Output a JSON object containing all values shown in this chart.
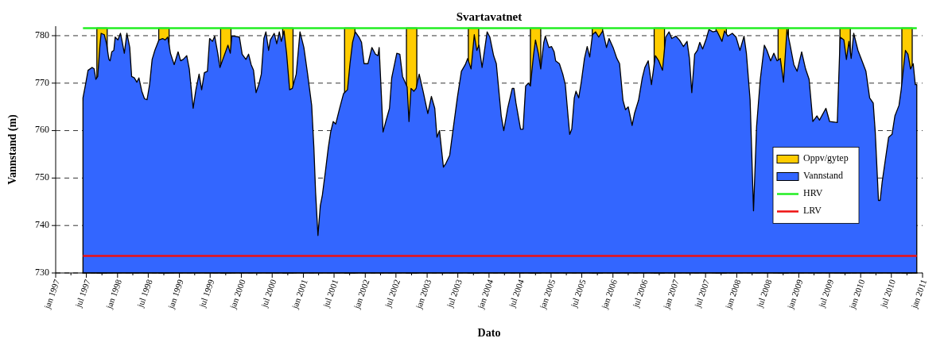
{
  "chart_data": {
    "type": "area",
    "title": "Svartavatnet",
    "xlabel": "Dato",
    "ylabel": "Vannstand (m)",
    "xlim": [
      "1997-01-01",
      "2011-01-01"
    ],
    "xticks": [
      {
        "value": "1997-01-01",
        "label": "jan 1997"
      },
      {
        "value": "1997-04-01",
        "label": null
      },
      {
        "value": "1997-07-01",
        "label": "jul 1997"
      },
      {
        "value": "1997-10-01",
        "label": null
      },
      {
        "value": "1998-01-01",
        "label": "jan 1998"
      },
      {
        "value": "1998-04-01",
        "label": null
      },
      {
        "value": "1998-07-01",
        "label": "jul 1998"
      },
      {
        "value": "1998-10-01",
        "label": null
      },
      {
        "value": "1999-01-01",
        "label": "jan 1999"
      },
      {
        "value": "1999-04-01",
        "label": null
      },
      {
        "value": "1999-07-01",
        "label": "jul 1999"
      },
      {
        "value": "1999-10-01",
        "label": null
      },
      {
        "value": "2000-01-01",
        "label": "jan 2000"
      },
      {
        "value": "2000-04-01",
        "label": null
      },
      {
        "value": "2000-07-01",
        "label": "jul 2000"
      },
      {
        "value": "2000-10-01",
        "label": null
      },
      {
        "value": "2001-01-01",
        "label": "jan 2001"
      },
      {
        "value": "2001-04-01",
        "label": null
      },
      {
        "value": "2001-07-01",
        "label": "jul 2001"
      },
      {
        "value": "2001-10-01",
        "label": null
      },
      {
        "value": "2002-01-01",
        "label": "jan 2002"
      },
      {
        "value": "2002-04-01",
        "label": null
      },
      {
        "value": "2002-07-01",
        "label": "jul 2002"
      },
      {
        "value": "2002-10-01",
        "label": null
      },
      {
        "value": "2003-01-01",
        "label": "jan 2003"
      },
      {
        "value": "2003-04-01",
        "label": null
      },
      {
        "value": "2003-07-01",
        "label": "jul 2003"
      },
      {
        "value": "2003-10-01",
        "label": null
      },
      {
        "value": "2004-01-01",
        "label": "jan 2004"
      },
      {
        "value": "2004-04-01",
        "label": null
      },
      {
        "value": "2004-07-01",
        "label": "jul 2004"
      },
      {
        "value": "2004-10-01",
        "label": null
      },
      {
        "value": "2005-01-01",
        "label": "jan 2005"
      },
      {
        "value": "2005-04-01",
        "label": null
      },
      {
        "value": "2005-07-01",
        "label": "jul 2005"
      },
      {
        "value": "2005-10-01",
        "label": null
      },
      {
        "value": "2006-01-01",
        "label": "jan 2006"
      },
      {
        "value": "2006-04-01",
        "label": null
      },
      {
        "value": "2006-07-01",
        "label": "jul 2006"
      },
      {
        "value": "2006-10-01",
        "label": null
      },
      {
        "value": "2007-01-01",
        "label": "jan 2007"
      },
      {
        "value": "2007-04-01",
        "label": null
      },
      {
        "value": "2007-07-01",
        "label": "jul 2007"
      },
      {
        "value": "2007-10-01",
        "label": null
      },
      {
        "value": "2008-01-01",
        "label": "jan 2008"
      },
      {
        "value": "2008-04-01",
        "label": null
      },
      {
        "value": "2008-07-01",
        "label": "jul 2008"
      },
      {
        "value": "2008-10-01",
        "label": null
      },
      {
        "value": "2009-01-01",
        "label": "jan 2009"
      },
      {
        "value": "2009-04-01",
        "label": null
      },
      {
        "value": "2009-07-01",
        "label": "jul 2009"
      },
      {
        "value": "2009-10-01",
        "label": null
      },
      {
        "value": "2010-01-01",
        "label": "jan 2010"
      },
      {
        "value": "2010-04-01",
        "label": null
      },
      {
        "value": "2010-07-01",
        "label": "jul 2010"
      },
      {
        "value": "2010-10-01",
        "label": null
      },
      {
        "value": "2011-01-01",
        "label": "jan 2011"
      }
    ],
    "ylim": [
      730,
      782
    ],
    "yticks": [
      730,
      740,
      750,
      760,
      770,
      780
    ],
    "grid": "y",
    "legend": "right",
    "series": [
      {
        "name": "Oppv/gytep",
        "color": "#ffcc00",
        "x": [
          "1997-09-01",
          "1997-11-01",
          "1997-12-01",
          "1998-09-01",
          "1998-11-01",
          "1998-12-01",
          "1999-09-01",
          "1999-11-01",
          "1999-12-01",
          "2000-09-01",
          "2000-11-01",
          "2000-12-01",
          "2001-09-01",
          "2001-11-01",
          "2001-12-01",
          "2002-09-01",
          "2002-11-01",
          "2002-12-01",
          "2003-09-01",
          "2003-11-01",
          "2003-12-01",
          "2004-09-01",
          "2004-11-01",
          "2004-12-01",
          "2005-09-01",
          "2005-11-01",
          "2005-12-01",
          "2006-09-01",
          "2006-11-01",
          "2006-12-01",
          "2007-09-01",
          "2007-11-01",
          "2007-12-01",
          "2008-09-01",
          "2008-11-01",
          "2008-12-01",
          "2009-09-01",
          "2009-11-01",
          "2009-12-01",
          "2010-09-01",
          "2010-11-01"
        ],
        "values": [
          781.6,
          781.6,
          null,
          781.6,
          781.6,
          null,
          781.6,
          781.6,
          null,
          781.6,
          781.6,
          null,
          781.6,
          781.6,
          null,
          781.6,
          781.6,
          null,
          781.6,
          781.6,
          null,
          781.6,
          781.6,
          null,
          781.6,
          781.6,
          null,
          781.6,
          781.6,
          null,
          781.6,
          781.6,
          null,
          781.6,
          781.6,
          null,
          781.6,
          781.6,
          null,
          781.6,
          781.6
        ]
      },
      {
        "name": "Vannstand",
        "color": "#3366ff",
        "x": [
          "1997-06-11",
          "1997-06-26",
          "1997-07-11",
          "1997-08-04",
          "1997-08-16",
          "1997-08-26",
          "1997-09-06",
          "1997-09-18",
          "1997-09-26",
          "1997-10-15",
          "1997-10-28",
          "1997-11-11",
          "1997-11-18",
          "1997-11-28",
          "1997-12-10",
          "1997-12-18",
          "1998-01-03",
          "1998-01-18",
          "1998-01-28",
          "1998-02-10",
          "1998-02-25",
          "1998-03-14",
          "1998-03-25",
          "1998-04-10",
          "1998-04-25",
          "1998-05-07",
          "1998-05-24",
          "1998-06-09",
          "1998-06-24",
          "1998-07-09",
          "1998-07-24",
          "1998-08-09",
          "1998-09-02",
          "1998-09-24",
          "1998-10-09",
          "1998-10-24",
          "1998-11-09",
          "1998-12-01",
          "1998-12-24",
          "1999-01-08",
          "1999-01-23",
          "1999-02-13",
          "1999-02-28",
          "1999-03-23",
          "1999-04-08",
          "1999-04-27",
          "1999-05-12",
          "1999-05-28",
          "1999-06-15",
          "1999-06-28",
          "1999-07-15",
          "1999-07-28",
          "1999-08-15",
          "1999-08-28",
          "1999-09-14",
          "1999-10-14",
          "1999-10-28",
          "1999-11-06",
          "1999-11-21",
          "1999-12-21",
          "2000-01-06",
          "2000-01-28",
          "2000-02-13",
          "2000-02-28",
          "2000-03-13",
          "2000-03-28",
          "2000-04-13",
          "2000-04-28",
          "2000-05-13",
          "2000-05-25",
          "2000-06-10",
          "2000-06-20",
          "2000-07-13",
          "2000-07-28",
          "2000-08-12",
          "2000-08-24",
          "2000-09-09",
          "2000-09-24",
          "2000-10-12",
          "2000-10-28",
          "2000-11-20",
          "2000-12-12",
          "2001-01-04",
          "2001-01-26",
          "2001-02-19",
          "2001-03-04",
          "2001-03-14",
          "2001-03-28",
          "2001-04-11",
          "2001-04-23",
          "2001-05-11",
          "2001-05-28",
          "2001-06-11",
          "2001-06-26",
          "2001-07-11",
          "2001-08-03",
          "2001-08-26",
          "2001-09-18",
          "2001-10-03",
          "2001-10-18",
          "2001-11-03",
          "2001-11-25",
          "2001-12-10",
          "2001-12-25",
          "2002-01-17",
          "2002-02-09",
          "2002-03-02",
          "2002-03-17",
          "2002-03-24",
          "2002-04-06",
          "2002-04-16",
          "2002-05-02",
          "2002-05-24",
          "2002-06-06",
          "2002-07-06",
          "2002-07-24",
          "2002-08-09",
          "2002-09-05",
          "2002-09-16",
          "2002-09-28",
          "2002-10-15",
          "2002-10-28",
          "2002-11-15",
          "2002-12-08",
          "2003-01-05",
          "2003-01-26",
          "2003-02-15",
          "2003-02-28",
          "2003-03-15",
          "2003-04-07",
          "2003-04-22",
          "2003-05-14",
          "2003-05-28",
          "2003-06-28",
          "2003-07-22",
          "2003-08-14",
          "2003-08-28",
          "2003-09-17",
          "2003-10-06",
          "2003-10-21",
          "2003-11-03",
          "2003-11-21",
          "2003-12-21",
          "2004-01-06",
          "2004-01-28",
          "2004-02-13",
          "2004-03-13",
          "2004-03-28",
          "2004-04-20",
          "2004-05-17",
          "2004-05-27",
          "2004-06-08",
          "2004-07-05",
          "2004-07-20",
          "2004-08-04",
          "2004-08-20",
          "2004-09-01",
          "2004-09-19",
          "2004-10-01",
          "2004-10-19",
          "2004-11-01",
          "2004-11-19",
          "2004-11-28",
          "2004-12-19",
          "2005-01-04",
          "2005-01-19",
          "2005-01-28",
          "2005-02-19",
          "2005-03-11",
          "2005-03-26",
          "2005-04-11",
          "2005-04-21",
          "2005-05-03",
          "2005-05-18",
          "2005-05-28",
          "2005-06-13",
          "2005-06-28",
          "2005-07-17",
          "2005-08-02",
          "2005-08-17",
          "2005-09-02",
          "2005-09-20",
          "2005-10-09",
          "2005-11-02",
          "2005-11-24",
          "2005-12-09",
          "2006-01-02",
          "2006-01-24",
          "2006-02-09",
          "2006-03-01",
          "2006-03-16",
          "2006-04-01",
          "2006-04-24",
          "2006-05-08",
          "2006-06-01",
          "2006-06-23",
          "2006-07-08",
          "2006-07-28",
          "2006-08-16",
          "2006-09-08",
          "2006-09-28",
          "2006-10-20",
          "2006-11-08",
          "2006-11-28",
          "2006-12-14",
          "2007-01-07",
          "2007-01-28",
          "2007-02-21",
          "2007-03-14",
          "2007-03-28",
          "2007-04-11",
          "2007-04-28",
          "2007-05-14",
          "2007-05-28",
          "2007-06-14",
          "2007-07-06",
          "2007-07-21",
          "2007-08-14",
          "2007-09-06",
          "2007-10-06",
          "2007-10-21",
          "2007-11-10",
          "2007-12-06",
          "2007-12-28",
          "2008-01-20",
          "2008-02-13",
          "2008-02-27",
          "2008-03-20",
          "2008-04-09",
          "2008-04-27",
          "2008-05-19",
          "2008-06-12",
          "2008-06-27",
          "2008-07-19",
          "2008-08-07",
          "2008-08-26",
          "2008-09-14",
          "2008-10-03",
          "2008-10-23",
          "2008-11-11",
          "2008-12-03",
          "2008-12-22",
          "2009-01-18",
          "2009-02-10",
          "2009-03-03",
          "2009-03-25",
          "2009-04-18",
          "2009-05-03",
          "2009-06-10",
          "2009-07-02",
          "2009-08-16",
          "2009-09-02",
          "2009-09-24",
          "2009-10-09",
          "2009-10-24",
          "2009-11-06",
          "2009-11-21",
          "2009-12-16",
          "2010-01-09",
          "2010-02-01",
          "2010-02-23",
          "2010-03-16",
          "2010-03-28",
          "2010-04-16",
          "2010-04-26",
          "2010-05-08",
          "2010-05-28",
          "2010-06-15",
          "2010-07-05",
          "2010-07-22",
          "2010-08-15",
          "2010-08-28",
          "2010-09-22",
          "2010-10-07",
          "2010-10-22",
          "2010-11-07",
          "2010-11-19",
          "2010-11-28"
        ],
        "values": [
          766.9,
          769.7,
          772.7,
          773.3,
          773.0,
          770.8,
          771.4,
          777.5,
          780.5,
          780.2,
          778.3,
          775.0,
          774.7,
          776.6,
          776.9,
          779.7,
          779.1,
          780.5,
          778.8,
          776.3,
          780.5,
          777.5,
          771.4,
          771.1,
          770.2,
          771.1,
          768.3,
          766.7,
          766.5,
          769.7,
          775.0,
          776.9,
          779.1,
          779.4,
          779.1,
          779.7,
          776.3,
          773.9,
          776.6,
          774.7,
          775.0,
          775.8,
          773.0,
          764.7,
          768.6,
          771.9,
          768.6,
          772.2,
          772.5,
          779.4,
          778.8,
          779.9,
          776.3,
          773.3,
          775.0,
          778.0,
          776.3,
          779.9,
          779.9,
          779.7,
          776.1,
          775.0,
          776.1,
          773.9,
          772.7,
          768.0,
          769.7,
          771.9,
          779.4,
          780.8,
          776.9,
          779.1,
          780.5,
          778.3,
          780.8,
          778.8,
          781.0,
          776.3,
          768.6,
          768.9,
          771.9,
          780.8,
          777.5,
          771.9,
          765.3,
          756.4,
          747.0,
          737.9,
          744.2,
          746.4,
          751.4,
          756.4,
          759.7,
          761.9,
          761.4,
          764.7,
          767.8,
          768.6,
          774.1,
          778.6,
          780.8,
          779.7,
          778.6,
          774.1,
          774.1,
          777.5,
          776.1,
          775.8,
          777.5,
          767.5,
          759.7,
          761.9,
          764.7,
          771.1,
          776.3,
          776.1,
          771.4,
          769.2,
          761.9,
          768.9,
          768.3,
          768.9,
          771.9,
          768.3,
          763.6,
          767.2,
          764.7,
          758.6,
          760.0,
          752.3,
          753.1,
          754.8,
          758.6,
          766.9,
          772.5,
          773.9,
          775.2,
          773.0,
          780.2,
          776.9,
          778.0,
          773.3,
          780.8,
          779.7,
          775.8,
          774.1,
          763.1,
          760.0,
          764.7,
          768.9,
          768.9,
          765.8,
          760.3,
          760.3,
          769.4,
          770.0,
          769.4,
          775.8,
          779.1,
          776.1,
          773.0,
          778.6,
          779.9,
          777.5,
          777.7,
          776.6,
          774.7,
          774.1,
          771.9,
          769.7,
          763.1,
          759.2,
          760.3,
          766.9,
          768.3,
          766.9,
          770.2,
          775.2,
          777.7,
          775.5,
          780.2,
          780.8,
          779.7,
          781.0,
          777.5,
          779.4,
          777.5,
          775.2,
          774.1,
          766.4,
          764.4,
          765.0,
          761.1,
          763.6,
          766.4,
          771.1,
          773.3,
          774.7,
          769.7,
          775.8,
          774.7,
          772.7,
          779.7,
          780.8,
          779.4,
          779.9,
          779.1,
          777.7,
          778.8,
          775.2,
          768.0,
          776.1,
          776.9,
          778.6,
          777.2,
          779.4,
          781.3,
          780.8,
          781.0,
          778.8,
          781.0,
          779.9,
          780.5,
          779.7,
          776.9,
          779.9,
          776.3,
          766.4,
          743.1,
          760.8,
          770.8,
          778.0,
          776.9,
          774.7,
          776.3,
          774.7,
          775.2,
          770.2,
          781.3,
          778.0,
          773.9,
          772.5,
          776.6,
          773.0,
          770.8,
          761.9,
          763.1,
          762.2,
          764.7,
          761.9,
          761.7,
          779.7,
          779.1,
          775.0,
          778.8,
          775.2,
          780.5,
          776.9,
          774.7,
          772.5,
          766.9,
          765.8,
          759.7,
          745.3,
          745.3,
          749.2,
          754.2,
          758.6,
          759.2,
          763.1,
          765.3,
          768.6,
          776.9,
          776.1,
          773.0,
          774.1,
          769.7,
          769.7
        ]
      },
      {
        "name": "HRV",
        "type": "line",
        "color": "#22ee22",
        "x": [
          "1997-06-11",
          "2010-11-28"
        ],
        "values": [
          781.6,
          781.6
        ]
      },
      {
        "name": "LRV",
        "type": "line",
        "color": "#ee1111",
        "x": [
          "1997-06-11",
          "2010-11-28"
        ],
        "values": [
          733.6,
          733.6
        ]
      }
    ]
  }
}
